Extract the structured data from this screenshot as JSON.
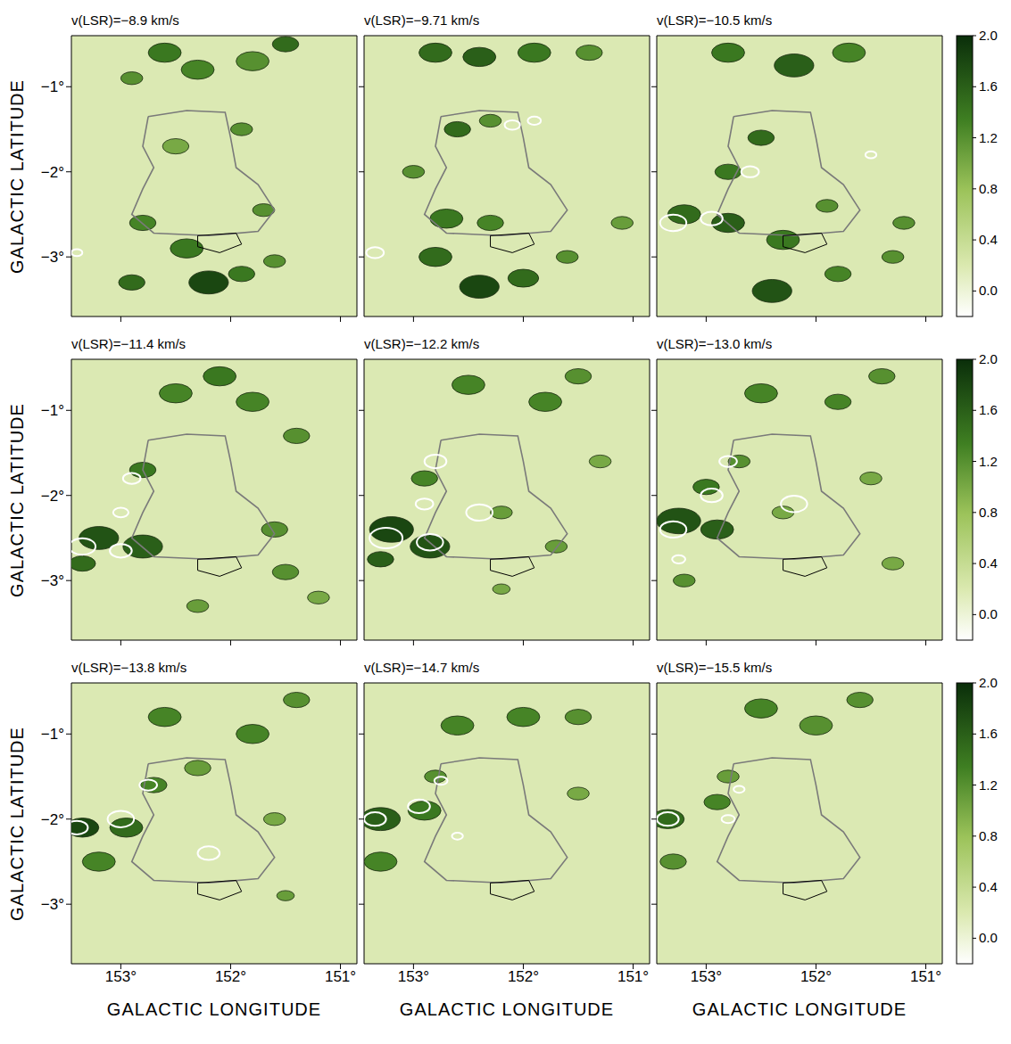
{
  "x_label": "GALACTIC LONGITUDE",
  "y_label": "GALACTIC LATITUDE",
  "xlim": [
    153.45,
    150.85
  ],
  "ylim": [
    -3.7,
    -0.4
  ],
  "xticks": [
    {
      "value": 153,
      "label": "153°"
    },
    {
      "value": 152,
      "label": "152°"
    },
    {
      "value": 151,
      "label": "151°"
    }
  ],
  "yticks": [
    {
      "value": -1,
      "label": "−1°"
    },
    {
      "value": -2,
      "label": "−2°"
    },
    {
      "value": -3,
      "label": "−3°"
    }
  ],
  "colorbar": {
    "range": [
      -0.2,
      2.0
    ],
    "ticks": [
      {
        "value": 0,
        "label": "0.0"
      },
      0.4,
      0.8,
      1.2,
      1.6,
      {
        "value": 2,
        "label": "2.0"
      }
    ]
  },
  "shell_contour": [
    [
      152.75,
      -1.35
    ],
    [
      152.4,
      -1.28
    ],
    [
      152.05,
      -1.3
    ],
    [
      152.0,
      -1.6
    ],
    [
      151.95,
      -1.95
    ],
    [
      151.75,
      -2.15
    ],
    [
      151.6,
      -2.45
    ],
    [
      151.75,
      -2.7
    ],
    [
      152.2,
      -2.75
    ],
    [
      152.7,
      -2.72
    ],
    [
      152.9,
      -2.5
    ],
    [
      152.8,
      -2.2
    ],
    [
      152.7,
      -1.95
    ],
    [
      152.8,
      -1.7
    ],
    [
      152.75,
      -1.35
    ]
  ],
  "inner_contour": [
    [
      152.3,
      -2.75
    ],
    [
      151.95,
      -2.72
    ],
    [
      151.9,
      -2.85
    ],
    [
      152.1,
      -2.95
    ],
    [
      152.3,
      -2.88
    ],
    [
      152.3,
      -2.75
    ]
  ],
  "chart_data": [
    {
      "type": "heatmap",
      "title": "v(LSR)=−8.9 km/s",
      "clumps": [
        [
          152.6,
          -0.6,
          1.4,
          0.15
        ],
        [
          152.3,
          -0.8,
          1.3,
          0.15
        ],
        [
          151.8,
          -0.7,
          1.2,
          0.15
        ],
        [
          151.5,
          -0.5,
          1.5,
          0.12
        ],
        [
          152.9,
          -0.9,
          1.2,
          0.1
        ],
        [
          152.5,
          -1.7,
          1.0,
          0.12
        ],
        [
          151.9,
          -1.5,
          1.2,
          0.1
        ],
        [
          152.8,
          -2.6,
          1.3,
          0.12
        ],
        [
          152.4,
          -2.9,
          1.4,
          0.15
        ],
        [
          152.9,
          -3.3,
          1.5,
          0.12
        ],
        [
          152.2,
          -3.3,
          1.8,
          0.18
        ],
        [
          151.9,
          -3.2,
          1.4,
          0.12
        ],
        [
          151.6,
          -3.05,
          1.2,
          0.1
        ],
        [
          151.7,
          -2.45,
          1.2,
          0.1
        ]
      ],
      "white_contours": [
        [
          153.4,
          -2.95,
          0.05
        ]
      ]
    },
    {
      "type": "heatmap",
      "title": "v(LSR)=−9.71 km/s",
      "clumps": [
        [
          152.8,
          -0.6,
          1.5,
          0.15
        ],
        [
          152.4,
          -0.65,
          1.6,
          0.15
        ],
        [
          151.9,
          -0.6,
          1.4,
          0.15
        ],
        [
          151.4,
          -0.6,
          1.2,
          0.12
        ],
        [
          152.6,
          -1.5,
          1.5,
          0.12
        ],
        [
          152.3,
          -1.4,
          1.2,
          0.1
        ],
        [
          153.0,
          -2.0,
          1.2,
          0.1
        ],
        [
          152.7,
          -2.55,
          1.4,
          0.15
        ],
        [
          152.3,
          -2.6,
          1.3,
          0.12
        ],
        [
          152.8,
          -3.0,
          1.5,
          0.15
        ],
        [
          152.4,
          -3.35,
          1.8,
          0.18
        ],
        [
          152.0,
          -3.25,
          1.5,
          0.14
        ],
        [
          151.6,
          -3.0,
          1.2,
          0.1
        ],
        [
          151.1,
          -2.6,
          1.1,
          0.1
        ]
      ],
      "white_contours": [
        [
          153.35,
          -2.95,
          0.08
        ],
        [
          152.1,
          -1.45,
          0.07
        ],
        [
          151.9,
          -1.4,
          0.06
        ]
      ]
    },
    {
      "type": "heatmap",
      "title": "v(LSR)=−10.5 km/s",
      "clumps": [
        [
          152.8,
          -0.6,
          1.4,
          0.15
        ],
        [
          152.2,
          -0.75,
          1.6,
          0.18
        ],
        [
          151.7,
          -0.6,
          1.3,
          0.15
        ],
        [
          152.5,
          -1.6,
          1.5,
          0.12
        ],
        [
          152.8,
          -2.0,
          1.4,
          0.12
        ],
        [
          153.2,
          -2.5,
          1.5,
          0.15
        ],
        [
          152.8,
          -2.6,
          1.6,
          0.15
        ],
        [
          152.3,
          -2.8,
          1.4,
          0.15
        ],
        [
          151.9,
          -2.4,
          1.2,
          0.1
        ],
        [
          152.4,
          -3.4,
          1.7,
          0.18
        ],
        [
          151.8,
          -3.2,
          1.3,
          0.12
        ],
        [
          151.2,
          -2.6,
          1.2,
          0.1
        ],
        [
          151.3,
          -3.0,
          1.2,
          0.1
        ]
      ],
      "white_contours": [
        [
          153.3,
          -2.6,
          0.12
        ],
        [
          152.95,
          -2.55,
          0.1
        ],
        [
          152.6,
          -2.0,
          0.08
        ],
        [
          151.5,
          -1.8,
          0.05
        ]
      ]
    },
    {
      "type": "heatmap",
      "title": "v(LSR)=−11.4 km/s",
      "clumps": [
        [
          152.5,
          -0.8,
          1.3,
          0.15
        ],
        [
          152.1,
          -0.6,
          1.4,
          0.15
        ],
        [
          151.8,
          -0.9,
          1.3,
          0.15
        ],
        [
          151.4,
          -1.3,
          1.2,
          0.12
        ],
        [
          152.8,
          -1.7,
          1.4,
          0.12
        ],
        [
          153.2,
          -2.5,
          1.7,
          0.18
        ],
        [
          152.8,
          -2.6,
          1.6,
          0.18
        ],
        [
          153.35,
          -2.8,
          1.5,
          0.12
        ],
        [
          151.6,
          -2.4,
          1.2,
          0.12
        ],
        [
          151.5,
          -2.9,
          1.2,
          0.12
        ],
        [
          152.3,
          -3.3,
          1.1,
          0.1
        ],
        [
          151.2,
          -3.2,
          1.0,
          0.1
        ]
      ],
      "white_contours": [
        [
          153.35,
          -2.6,
          0.12
        ],
        [
          153.0,
          -2.65,
          0.1
        ],
        [
          152.9,
          -1.8,
          0.08
        ],
        [
          153.0,
          -2.2,
          0.07
        ]
      ]
    },
    {
      "type": "heatmap",
      "title": "v(LSR)=−12.2 km/s",
      "clumps": [
        [
          152.5,
          -0.7,
          1.3,
          0.15
        ],
        [
          151.8,
          -0.9,
          1.3,
          0.15
        ],
        [
          151.5,
          -0.6,
          1.2,
          0.12
        ],
        [
          153.2,
          -2.4,
          1.8,
          0.2
        ],
        [
          152.85,
          -2.6,
          1.7,
          0.18
        ],
        [
          153.3,
          -2.75,
          1.6,
          0.12
        ],
        [
          152.9,
          -1.8,
          1.3,
          0.12
        ],
        [
          152.2,
          -2.2,
          1.1,
          0.1
        ],
        [
          151.7,
          -2.6,
          1.1,
          0.1
        ],
        [
          151.3,
          -1.6,
          1.0,
          0.1
        ],
        [
          152.2,
          -3.1,
          1.0,
          0.08
        ]
      ],
      "white_contours": [
        [
          153.25,
          -2.5,
          0.15
        ],
        [
          152.85,
          -2.55,
          0.12
        ],
        [
          152.8,
          -1.6,
          0.1
        ],
        [
          152.4,
          -2.2,
          0.12
        ],
        [
          152.9,
          -2.1,
          0.08
        ]
      ]
    },
    {
      "type": "heatmap",
      "title": "v(LSR)=−13.0 km/s",
      "clumps": [
        [
          152.5,
          -0.8,
          1.3,
          0.15
        ],
        [
          151.8,
          -0.9,
          1.3,
          0.12
        ],
        [
          151.4,
          -0.6,
          1.2,
          0.12
        ],
        [
          153.25,
          -2.3,
          1.7,
          0.2
        ],
        [
          152.9,
          -2.4,
          1.6,
          0.15
        ],
        [
          153.0,
          -1.9,
          1.4,
          0.12
        ],
        [
          152.7,
          -1.6,
          1.2,
          0.1
        ],
        [
          152.3,
          -2.2,
          1.0,
          0.1
        ],
        [
          151.5,
          -1.8,
          1.0,
          0.1
        ],
        [
          151.3,
          -2.8,
          1.0,
          0.1
        ],
        [
          153.2,
          -3.0,
          1.2,
          0.1
        ]
      ],
      "white_contours": [
        [
          153.3,
          -2.4,
          0.12
        ],
        [
          152.95,
          -2.0,
          0.1
        ],
        [
          152.8,
          -1.6,
          0.08
        ],
        [
          152.2,
          -2.1,
          0.12
        ],
        [
          153.25,
          -2.75,
          0.06
        ]
      ]
    },
    {
      "type": "heatmap",
      "title": "v(LSR)=−13.8 km/s",
      "clumps": [
        [
          152.6,
          -0.8,
          1.3,
          0.15
        ],
        [
          151.8,
          -1.0,
          1.3,
          0.15
        ],
        [
          151.4,
          -0.6,
          1.2,
          0.12
        ],
        [
          152.3,
          -1.4,
          1.1,
          0.12
        ],
        [
          153.35,
          -2.1,
          1.8,
          0.15
        ],
        [
          152.95,
          -2.1,
          1.5,
          0.15
        ],
        [
          153.2,
          -2.5,
          1.3,
          0.15
        ],
        [
          152.7,
          -1.6,
          1.3,
          0.12
        ],
        [
          151.6,
          -2.0,
          1.0,
          0.1
        ],
        [
          151.5,
          -2.9,
          1.1,
          0.08
        ]
      ],
      "white_contours": [
        [
          153.4,
          -2.1,
          0.1
        ],
        [
          153.0,
          -2.0,
          0.12
        ],
        [
          152.75,
          -1.6,
          0.08
        ],
        [
          152.2,
          -2.4,
          0.1
        ]
      ]
    },
    {
      "type": "heatmap",
      "title": "v(LSR)=−14.7 km/s",
      "clumps": [
        [
          152.6,
          -0.9,
          1.3,
          0.15
        ],
        [
          152.0,
          -0.8,
          1.3,
          0.15
        ],
        [
          151.5,
          -0.8,
          1.2,
          0.12
        ],
        [
          153.3,
          -2.0,
          1.6,
          0.18
        ],
        [
          152.9,
          -1.9,
          1.4,
          0.15
        ],
        [
          153.3,
          -2.5,
          1.3,
          0.15
        ],
        [
          152.8,
          -1.5,
          1.2,
          0.1
        ],
        [
          151.5,
          -1.7,
          1.0,
          0.1
        ]
      ],
      "white_contours": [
        [
          153.35,
          -2.0,
          0.1
        ],
        [
          152.95,
          -1.85,
          0.1
        ],
        [
          152.75,
          -1.55,
          0.06
        ],
        [
          152.6,
          -2.2,
          0.05
        ]
      ]
    },
    {
      "type": "heatmap",
      "title": "v(LSR)=−15.5 km/s",
      "clumps": [
        [
          152.5,
          -0.7,
          1.3,
          0.15
        ],
        [
          152.0,
          -0.9,
          1.2,
          0.15
        ],
        [
          151.6,
          -0.6,
          1.2,
          0.12
        ],
        [
          153.35,
          -2.0,
          1.5,
          0.15
        ],
        [
          152.9,
          -1.8,
          1.3,
          0.12
        ],
        [
          153.3,
          -2.5,
          1.2,
          0.12
        ],
        [
          152.8,
          -1.5,
          1.1,
          0.1
        ]
      ],
      "white_contours": [
        [
          153.35,
          -2.0,
          0.1
        ],
        [
          152.8,
          -2.0,
          0.06
        ],
        [
          152.7,
          -1.65,
          0.05
        ]
      ]
    }
  ]
}
